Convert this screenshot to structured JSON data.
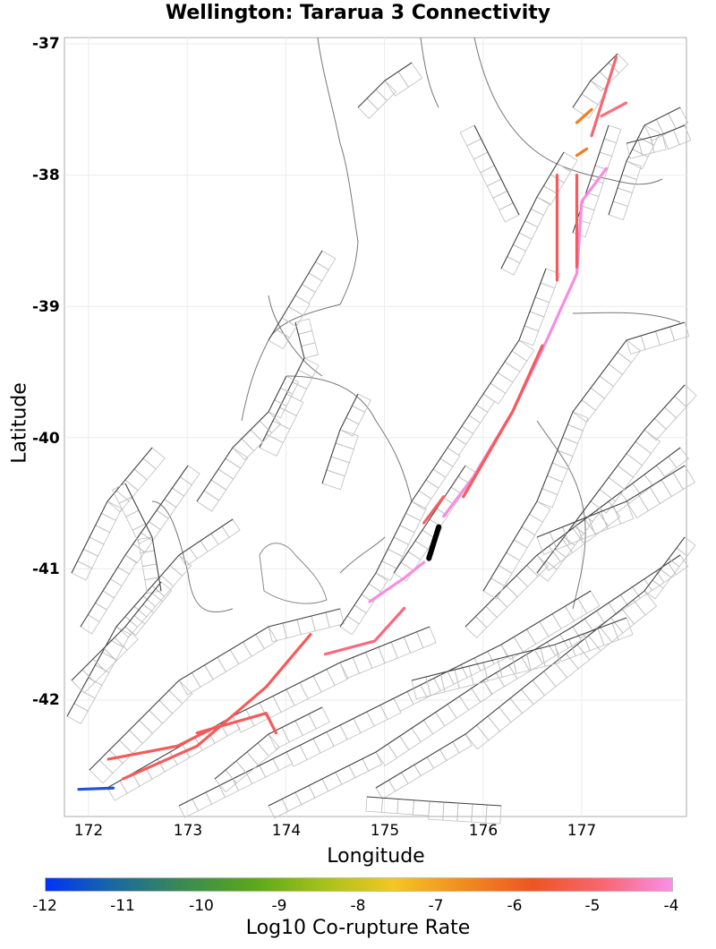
{
  "title": "Wellington: Tararua 3 Connectivity",
  "axes": {
    "xlabel": "Longitude",
    "ylabel": "Latitude",
    "xticks": [
      "172",
      "173",
      "174",
      "175",
      "176",
      "177"
    ],
    "yticks": [
      "-37",
      "-38",
      "-39",
      "-40",
      "-41",
      "-42"
    ]
  },
  "colorbar": {
    "label": "Log10 Co-rupture Rate",
    "ticks": [
      "-12",
      "-11",
      "-10",
      "-9",
      "-8",
      "-7",
      "-6",
      "-5",
      "-4"
    ],
    "stops": [
      "#0034f5",
      "#1a6aa0",
      "#3b8b50",
      "#5aa81a",
      "#a6c21a",
      "#f5c623",
      "#f28c1e",
      "#ee5523",
      "#f96670",
      "#fa8ee8"
    ]
  },
  "chart_data": {
    "type": "map",
    "title": "Wellington: Tararua 3 Connectivity",
    "xlabel": "Longitude",
    "ylabel": "Latitude",
    "xlim": [
      171.75,
      178.05
    ],
    "ylim": [
      -42.95,
      -36.96
    ],
    "grid": true,
    "legend": "colorbar bottom, Log10 Co-rupture Rate, range -12 to -4",
    "source_fault": {
      "name": "Tararua 3",
      "color": "#000000",
      "segment": [
        [
          175.55,
          -40.68
        ],
        [
          175.45,
          -40.92
        ]
      ]
    },
    "highlighted_ruptures": [
      {
        "level": -4.2,
        "color": "#f58ee0",
        "path": [
          [
            175.4,
            -40.95
          ],
          [
            175.2,
            -41.07
          ],
          [
            174.85,
            -41.25
          ]
        ]
      },
      {
        "level": -4.3,
        "color": "#f58ee0",
        "path": [
          [
            175.6,
            -40.6
          ],
          [
            175.9,
            -40.3
          ],
          [
            176.3,
            -39.8
          ],
          [
            176.65,
            -39.25
          ],
          [
            176.95,
            -38.75
          ],
          [
            177.0,
            -38.2
          ],
          [
            177.25,
            -37.95
          ]
        ]
      },
      {
        "level": -5.0,
        "color": "#f96a80",
        "path": [
          [
            174.4,
            -41.65
          ],
          [
            174.9,
            -41.55
          ],
          [
            175.2,
            -41.3
          ]
        ]
      },
      {
        "level": -5.5,
        "color": "#f65a5a",
        "path": [
          [
            172.35,
            -42.6
          ],
          [
            173.1,
            -42.35
          ],
          [
            173.8,
            -41.9
          ],
          [
            174.25,
            -41.5
          ]
        ]
      },
      {
        "level": -5.6,
        "color": "#f65a5a",
        "path": [
          [
            172.2,
            -42.45
          ],
          [
            172.9,
            -42.35
          ],
          [
            173.3,
            -42.2
          ]
        ]
      },
      {
        "level": -5.6,
        "color": "#f65a5a",
        "path": [
          [
            173.1,
            -42.25
          ],
          [
            173.8,
            -42.1
          ],
          [
            173.9,
            -42.25
          ]
        ]
      },
      {
        "level": -5.5,
        "color": "#f65a5a",
        "path": [
          [
            175.8,
            -40.45
          ],
          [
            176.3,
            -39.8
          ],
          [
            176.6,
            -39.3
          ]
        ]
      },
      {
        "level": -5.5,
        "color": "#f65a5a",
        "path": [
          [
            176.75,
            -38.8
          ],
          [
            176.75,
            -38.0
          ]
        ]
      },
      {
        "level": -5.5,
        "color": "#f65a5a",
        "path": [
          [
            176.95,
            -38.7
          ],
          [
            176.95,
            -38.0
          ]
        ]
      },
      {
        "level": -5.3,
        "color": "#f66670",
        "path": [
          [
            177.1,
            -37.7
          ],
          [
            177.35,
            -37.1
          ]
        ]
      },
      {
        "level": -5.2,
        "color": "#f87080",
        "path": [
          [
            177.2,
            -37.55
          ],
          [
            177.45,
            -37.45
          ]
        ]
      },
      {
        "level": -5.7,
        "color": "#f66060",
        "path": [
          [
            175.4,
            -40.65
          ],
          [
            175.6,
            -40.45
          ]
        ]
      },
      {
        "level": -6.8,
        "color": "#ef7f1e",
        "path": [
          [
            176.95,
            -37.6
          ],
          [
            177.1,
            -37.5
          ]
        ]
      },
      {
        "level": -6.8,
        "color": "#ef7f1e",
        "path": [
          [
            176.95,
            -37.85
          ],
          [
            177.05,
            -37.8
          ]
        ]
      },
      {
        "level": -11.5,
        "color": "#1e55d8",
        "path": [
          [
            171.9,
            -42.68
          ],
          [
            172.25,
            -42.67
          ]
        ]
      }
    ]
  }
}
